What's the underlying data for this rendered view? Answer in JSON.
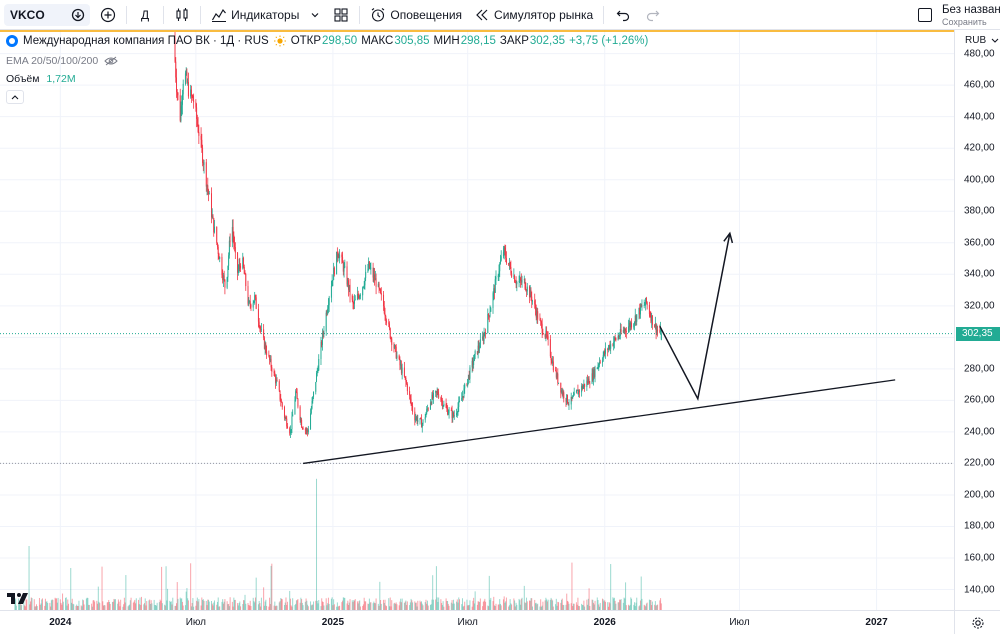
{
  "toolbar": {
    "symbol": "VKCO",
    "interval": "Д",
    "indicators_label": "Индикаторы",
    "alerts_label": "Оповещения",
    "replay_label": "Симулятор рынка",
    "layout_title": "Без названия",
    "layout_saved": "Сохранить"
  },
  "legend": {
    "title": "Международная компания ПАО ВК · 1Д · RUS",
    "open_label": "ОТКР",
    "open_value": "298,50",
    "high_label": "МАКС",
    "high_value": "305,85",
    "low_label": "МИН",
    "low_value": "298,15",
    "close_label": "ЗАКР",
    "close_value": "302,35",
    "change_value": "+3,75 (+1,26%)",
    "ema_label": "EMA 20/50/100/200",
    "volume_label": "Объём",
    "volume_value": "1,72M"
  },
  "colors": {
    "up": "#22ab94",
    "down": "#f23645",
    "line": "#131722",
    "grid": "#f0f3fa",
    "high_line": "#f7a600"
  },
  "icons": [
    "search-icon",
    "plus-icon",
    "candles-icon",
    "indicators-icon",
    "templates-icon",
    "alarm-icon",
    "replay-icon",
    "undo-icon",
    "redo-icon",
    "eye-icon",
    "gear-icon"
  ],
  "chart_data": {
    "type": "candlestick",
    "currency": "RUB",
    "y_ticks": [
      "480,00",
      "460,00",
      "440,00",
      "420,00",
      "400,00",
      "380,00",
      "360,00",
      "340,00",
      "320,00",
      "300,00",
      "280,00",
      "260,00",
      "240,00",
      "220,00",
      "200,00",
      "180,00",
      "160,00",
      "140,00"
    ],
    "ylim": [
      127,
      495
    ],
    "current_price": 302.35,
    "current_price_label": "302,35",
    "x_ticks": [
      "2024",
      "Июл",
      "2025",
      "Июл",
      "2026",
      "Июл",
      "2027"
    ],
    "x_tick_dates": [
      "2024-01-01",
      "2024-07-01",
      "2025-01-01",
      "2025-07-01",
      "2026-01-01",
      "2026-07-01",
      "2027-01-01"
    ],
    "xlim": [
      "2023-10-12",
      "2027-04-15"
    ],
    "price_path": [
      [
        "2024-06-01",
        490
      ],
      [
        "2024-06-05",
        460
      ],
      [
        "2024-06-10",
        440
      ],
      [
        "2024-06-15",
        470
      ],
      [
        "2024-06-22",
        455
      ],
      [
        "2024-06-28",
        450
      ],
      [
        "2024-07-05",
        430
      ],
      [
        "2024-07-15",
        400
      ],
      [
        "2024-07-25",
        370
      ],
      [
        "2024-08-02",
        350
      ],
      [
        "2024-08-10",
        330
      ],
      [
        "2024-08-18",
        375
      ],
      [
        "2024-08-25",
        340
      ],
      [
        "2024-09-01",
        350
      ],
      [
        "2024-09-10",
        320
      ],
      [
        "2024-09-18",
        325
      ],
      [
        "2024-09-28",
        300
      ],
      [
        "2024-10-08",
        285
      ],
      [
        "2024-10-18",
        270
      ],
      [
        "2024-10-28",
        250
      ],
      [
        "2024-11-05",
        240
      ],
      [
        "2024-11-12",
        265
      ],
      [
        "2024-11-20",
        245
      ],
      [
        "2024-11-28",
        240
      ],
      [
        "2024-12-08",
        270
      ],
      [
        "2024-12-18",
        300
      ],
      [
        "2024-12-28",
        330
      ],
      [
        "2025-01-08",
        355
      ],
      [
        "2025-01-18",
        340
      ],
      [
        "2025-01-28",
        320
      ],
      [
        "2025-02-08",
        330
      ],
      [
        "2025-02-18",
        345
      ],
      [
        "2025-02-28",
        335
      ],
      [
        "2025-03-10",
        320
      ],
      [
        "2025-03-20",
        300
      ],
      [
        "2025-03-30",
        285
      ],
      [
        "2025-04-10",
        270
      ],
      [
        "2025-04-20",
        250
      ],
      [
        "2025-05-01",
        245
      ],
      [
        "2025-05-12",
        260
      ],
      [
        "2025-05-22",
        265
      ],
      [
        "2025-06-01",
        255
      ],
      [
        "2025-06-12",
        250
      ],
      [
        "2025-06-22",
        260
      ],
      [
        "2025-07-02",
        275
      ],
      [
        "2025-07-12",
        290
      ],
      [
        "2025-07-22",
        300
      ],
      [
        "2025-08-01",
        320
      ],
      [
        "2025-08-10",
        340
      ],
      [
        "2025-08-18",
        355
      ],
      [
        "2025-08-26",
        345
      ],
      [
        "2025-09-05",
        335
      ],
      [
        "2025-09-15",
        335
      ],
      [
        "2025-09-25",
        325
      ],
      [
        "2025-10-05",
        310
      ],
      [
        "2025-10-15",
        300
      ],
      [
        "2025-10-25",
        280
      ],
      [
        "2025-11-05",
        265
      ],
      [
        "2025-11-15",
        258
      ],
      [
        "2025-11-25",
        265
      ],
      [
        "2025-12-05",
        270
      ],
      [
        "2025-12-15",
        275
      ],
      [
        "2025-12-25",
        285
      ],
      [
        "2026-01-08",
        295
      ],
      [
        "2026-01-18",
        300
      ],
      [
        "2026-01-28",
        305
      ],
      [
        "2026-02-08",
        310
      ],
      [
        "2026-02-18",
        318
      ],
      [
        "2026-02-26",
        322
      ],
      [
        "2026-03-05",
        312
      ],
      [
        "2026-03-12",
        305
      ],
      [
        "2026-03-18",
        302.35
      ]
    ],
    "volume_scale_max": 100,
    "volume_spikes": [
      {
        "date": "2023-11-20",
        "v": 40,
        "dir": "up"
      },
      {
        "date": "2024-12-10",
        "v": 82,
        "dir": "up"
      },
      {
        "date": "2024-12-22",
        "v": 42,
        "dir": "up"
      },
      {
        "date": "2025-04-05",
        "v": 72,
        "dir": "down"
      },
      {
        "date": "2025-08-10",
        "v": 45,
        "dir": "up"
      },
      {
        "date": "2026-03-01",
        "v": 49,
        "dir": "up"
      }
    ],
    "annotations": {
      "support_line": [
        [
          "2024-11-22",
          220
        ],
        [
          "2027-01-26",
          273
        ]
      ],
      "projection": [
        [
          "2026-03-16",
          307
        ],
        [
          "2026-05-06",
          261
        ],
        [
          "2026-06-18",
          366
        ]
      ]
    }
  }
}
